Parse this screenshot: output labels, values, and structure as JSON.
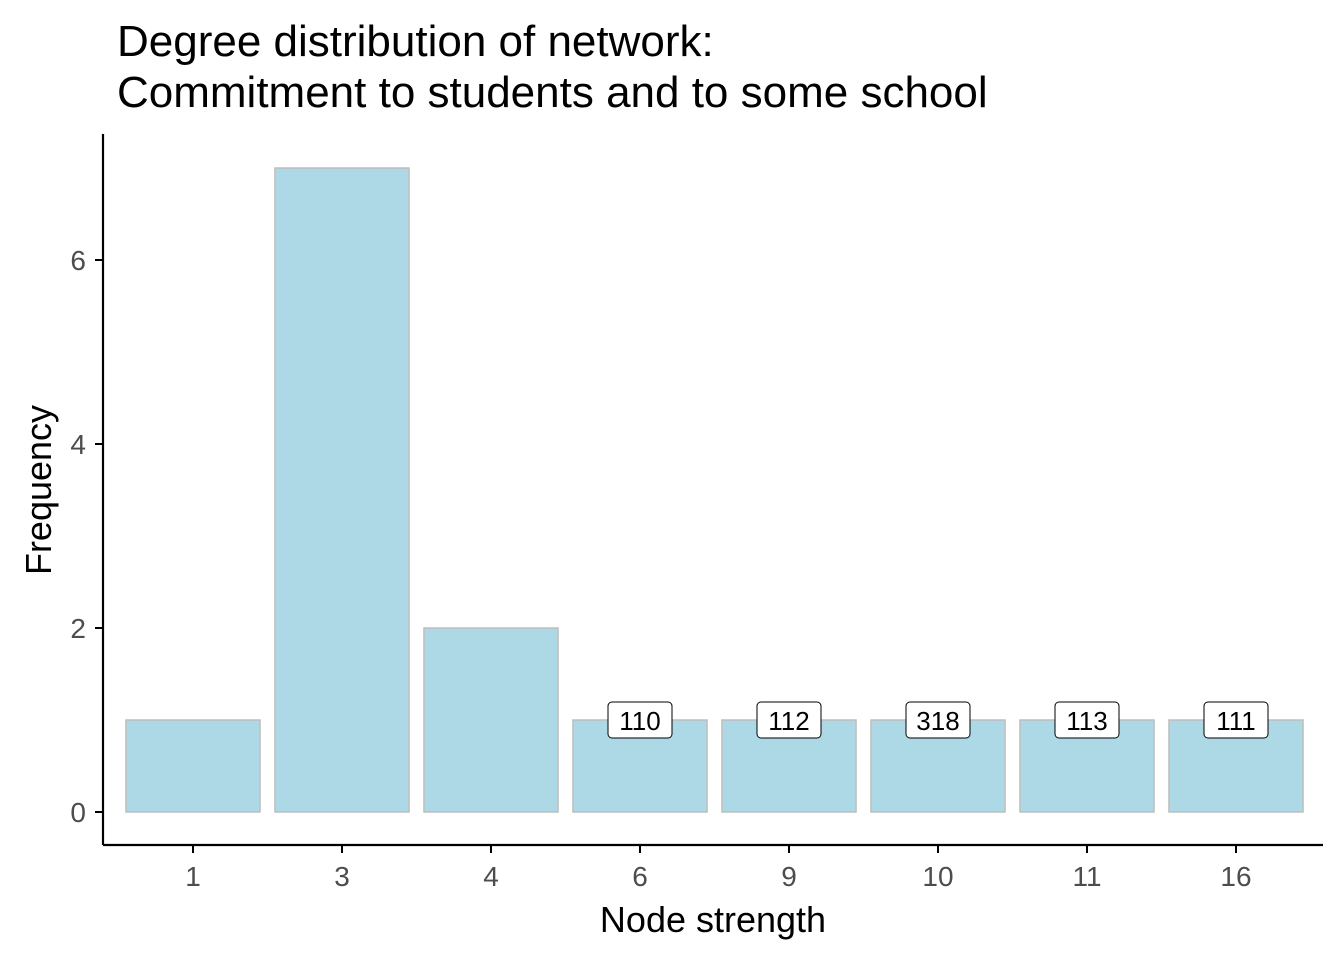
{
  "chart_data": {
    "type": "bar",
    "title_lines": [
      "Degree distribution of network:",
      "Commitment to students and to some school"
    ],
    "xlabel": "Node strength",
    "ylabel": "Frequency",
    "categories": [
      "1",
      "3",
      "4",
      "6",
      "9",
      "10",
      "11",
      "16"
    ],
    "values": [
      1,
      7,
      2,
      1,
      1,
      1,
      1,
      1
    ],
    "bar_labels": [
      "",
      "",
      "",
      "110",
      "112",
      "318",
      "113",
      "111"
    ],
    "y_ticks": [
      0,
      2,
      4,
      6
    ],
    "ylim": [
      0,
      7
    ],
    "grid": false,
    "legend": "none",
    "colors": {
      "bar_fill": "#add8e6",
      "bar_stroke": "#bebebe",
      "axis": "#000000",
      "tick_label": "#4d4d4d"
    }
  }
}
